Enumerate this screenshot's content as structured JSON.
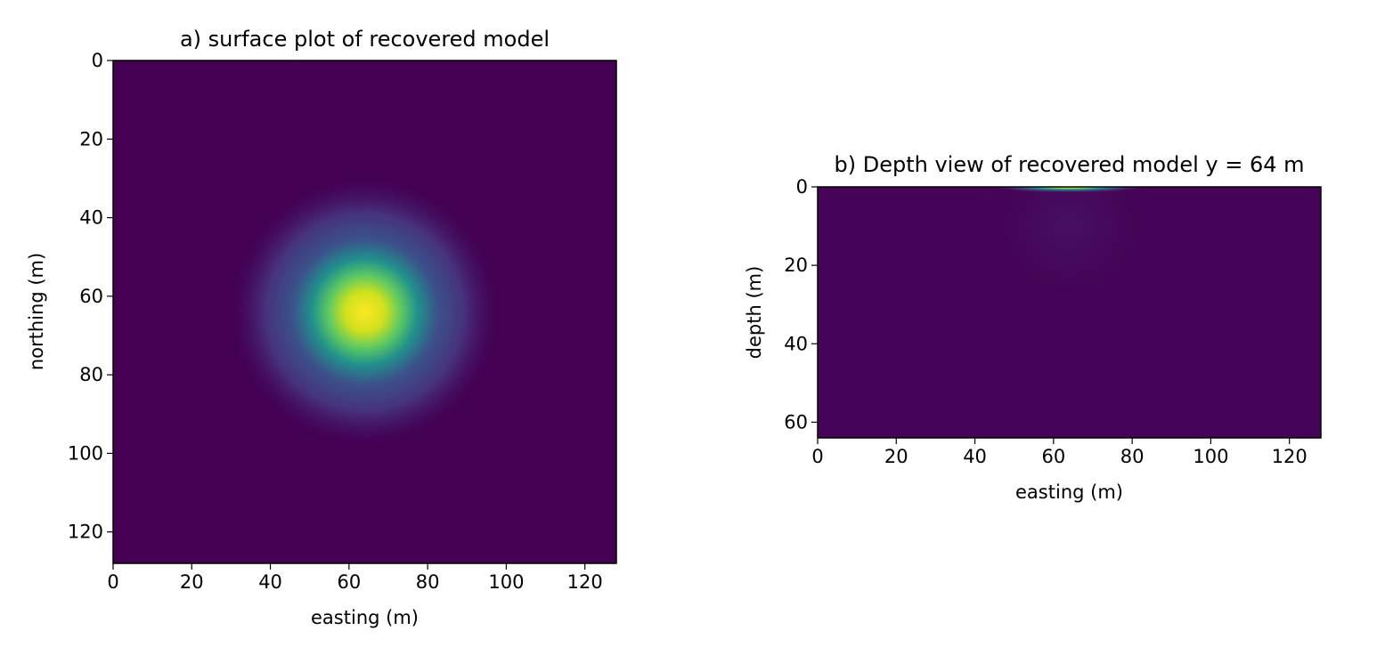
{
  "chart_data": [
    {
      "type": "heatmap",
      "title": "a) surface plot of recovered model",
      "xlabel": "easting (m)",
      "ylabel": "northing (m)",
      "xlim": [
        0,
        128
      ],
      "ylim": [
        128,
        0
      ],
      "x_ticks": [
        0,
        20,
        40,
        60,
        80,
        100,
        120
      ],
      "y_ticks": [
        0,
        20,
        40,
        60,
        80,
        100,
        120
      ],
      "y_inverted": true,
      "colormap": "viridis",
      "anomaly": {
        "center_x": 64,
        "center_y": 64,
        "sigma": 10,
        "peak": 1.0
      },
      "background_value": 0.0
    },
    {
      "type": "heatmap",
      "title": "b) Depth view of recovered model y = 64 m",
      "xlabel": "easting (m)",
      "ylabel": "depth (m)",
      "xlim": [
        0,
        128
      ],
      "ylim": [
        64,
        0
      ],
      "x_ticks": [
        0,
        20,
        40,
        60,
        80,
        100,
        120
      ],
      "y_ticks": [
        0,
        20,
        40,
        60
      ],
      "y_inverted": true,
      "colormap": "viridis",
      "anomaly": {
        "center_x": 64,
        "center_depth": 0,
        "sigma_x": 8,
        "sigma_depth": 0.6,
        "peak": 1.0
      },
      "halo": {
        "center_x": 64,
        "center_depth": 10,
        "radius": 18,
        "value": 0.05
      },
      "background_value": 0.02
    }
  ]
}
